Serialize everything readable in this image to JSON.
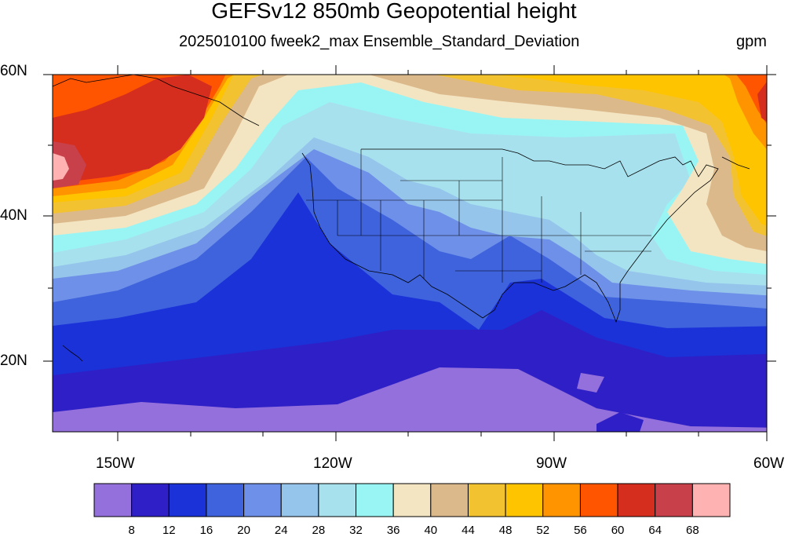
{
  "title": "GEFSv12 850mb Geopotential height",
  "subtitle": "2025010100 fweek2_max Ensemble_Standard_Deviation",
  "units": "gpm",
  "lat_labels": [
    "60N",
    "40N",
    "20N"
  ],
  "lon_labels": [
    "150W",
    "120W",
    "90W",
    "60W"
  ],
  "colorbar": {
    "levels": [
      "8",
      "12",
      "16",
      "20",
      "24",
      "28",
      "32",
      "36",
      "40",
      "44",
      "48",
      "52",
      "56",
      "60",
      "64",
      "68"
    ],
    "colors": [
      "#9370DB",
      "#2F1FC6",
      "#1B32D9",
      "#3E63DD",
      "#6E90E8",
      "#96C5EB",
      "#A8E1EE",
      "#99F5F4",
      "#F3E5C2",
      "#DCB98B",
      "#F2C231",
      "#FFC400",
      "#FF9400",
      "#FF5400",
      "#D62E1E",
      "#C8414A",
      "#FFB2B2"
    ]
  },
  "map": {
    "extent_lon": [
      -160,
      -60
    ],
    "extent_lat": [
      10,
      60
    ]
  }
}
